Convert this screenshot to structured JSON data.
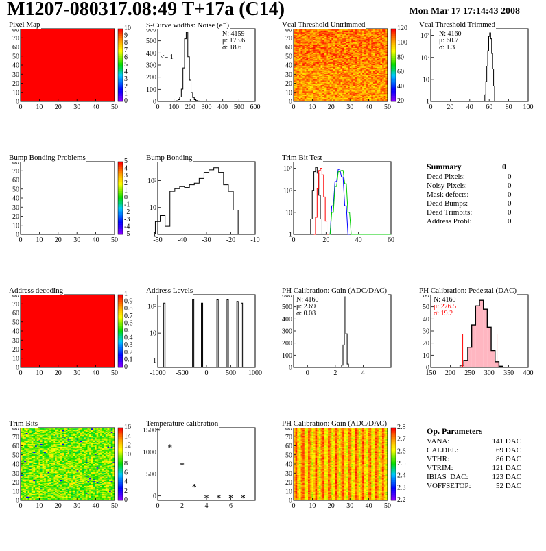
{
  "header": {
    "title": "M1207-080317.08:49 T+17a (C14)",
    "datestamp": "Mon Mar 17 17:14:43 2008"
  },
  "colors": {
    "red": "#ff0000",
    "black": "#000000",
    "blue": "#0000ff",
    "green": "#00cc00",
    "pink": "#ffb6c1"
  },
  "panels": [
    {
      "id": "pixel-map",
      "title": "Pixel Map",
      "type": "heatmap",
      "xticks": [
        "0",
        "10",
        "20",
        "30",
        "40",
        "50"
      ],
      "yticks": [
        "0",
        "10",
        "20",
        "30",
        "40",
        "50",
        "60",
        "70",
        "80"
      ],
      "zticks": [
        "0",
        "1",
        "2",
        "3",
        "4",
        "5",
        "6",
        "7",
        "8",
        "9",
        "10"
      ],
      "fill": "uniform-red"
    },
    {
      "id": "scurve-noise",
      "title": "S-Curve widths: Noise (e⁻)",
      "type": "histogram",
      "xticks": [
        "0",
        "100",
        "200",
        "300",
        "400",
        "500",
        "600"
      ],
      "yticks": [
        "0",
        "100",
        "200",
        "300",
        "400",
        "500",
        "600"
      ],
      "stats": [
        "N: 4159",
        "μ: 173.6",
        "σ: 18.6"
      ],
      "note": "<= 1"
    },
    {
      "id": "vcal-untrimmed",
      "title": "Vcal Threshold Untrimmed",
      "type": "heatmap",
      "xticks": [
        "0",
        "10",
        "20",
        "30",
        "40",
        "50"
      ],
      "yticks": [
        "0",
        "10",
        "20",
        "30",
        "40",
        "50",
        "60",
        "70",
        "80"
      ],
      "zticks": [
        "20",
        "40",
        "60",
        "80",
        "100",
        "120"
      ],
      "fill": "orange-noise"
    },
    {
      "id": "vcal-trimmed",
      "title": "Vcal Threshold Trimmed",
      "type": "histogram",
      "xticks": [
        "0",
        "20",
        "40",
        "60",
        "80",
        "100"
      ],
      "yticks": [
        "1",
        "10",
        "10²",
        "10³"
      ],
      "stats": [
        "N: 4160",
        "μ: 60.7",
        "σ:  1.3"
      ]
    },
    {
      "id": "bump-problems",
      "title": "Bump Bonding Problems",
      "type": "heatmap",
      "xticks": [
        "0",
        "10",
        "20",
        "30",
        "40",
        "50"
      ],
      "yticks": [
        "0",
        "10",
        "20",
        "30",
        "40",
        "50",
        "60",
        "70",
        "80"
      ],
      "zticks": [
        "-5",
        "-4",
        "-3",
        "-2",
        "-1",
        "0",
        "1",
        "2",
        "3",
        "4",
        "5"
      ],
      "fill": "empty"
    },
    {
      "id": "bump-bonding",
      "title": "Bump Bonding",
      "type": "histogram",
      "xticks": [
        "-50",
        "-40",
        "-30",
        "-20",
        "-10"
      ],
      "yticks": [
        "1",
        "10",
        "10²"
      ]
    },
    {
      "id": "trim-bit-test",
      "title": "Trim Bit Test",
      "type": "histogram",
      "xticks": [
        "0",
        "20",
        "40",
        "60"
      ],
      "yticks": [
        "1",
        "10",
        "10²",
        "10³"
      ]
    },
    {
      "id": "address-decoding",
      "title": "Address decoding",
      "type": "heatmap",
      "xticks": [
        "0",
        "10",
        "20",
        "30",
        "40",
        "50"
      ],
      "yticks": [
        "0",
        "10",
        "20",
        "30",
        "40",
        "50",
        "60",
        "70",
        "80"
      ],
      "zticks": [
        "0",
        "0.1",
        "0.2",
        "0.3",
        "0.4",
        "0.5",
        "0.6",
        "0.7",
        "0.8",
        "0.9",
        "1"
      ],
      "fill": "uniform-red"
    },
    {
      "id": "address-levels",
      "title": "Address Levels",
      "type": "histogram",
      "xticks": [
        "-1000",
        "-500",
        "0",
        "500",
        "1000"
      ],
      "yticks": [
        "1",
        "10",
        "10²"
      ]
    },
    {
      "id": "ph-gain",
      "title": "PH Calibration: Gain (ADC/DAC)",
      "type": "histogram",
      "xticks": [
        "0",
        "2",
        "4"
      ],
      "yticks": [
        "0",
        "100",
        "200",
        "300",
        "400",
        "500",
        "600"
      ],
      "stats": [
        "N: 4160",
        "μ: 2.69",
        "σ: 0.08"
      ]
    },
    {
      "id": "ph-pedestal",
      "title": "PH Calibration: Pedestal (DAC)",
      "type": "histogram",
      "xticks": [
        "150",
        "200",
        "250",
        "300",
        "350",
        "400"
      ],
      "yticks": [
        "0",
        "10",
        "20",
        "30",
        "40",
        "50",
        "60"
      ],
      "stats": [
        "N: 4160",
        "μ: 276.5",
        "σ: 19.2"
      ]
    },
    {
      "id": "trim-bits",
      "title": "Trim Bits",
      "type": "heatmap",
      "xticks": [
        "0",
        "10",
        "20",
        "30",
        "40",
        "50"
      ],
      "yticks": [
        "0",
        "10",
        "20",
        "30",
        "40",
        "50",
        "60",
        "70",
        "80"
      ],
      "zticks": [
        "0",
        "2",
        "4",
        "6",
        "8",
        "10",
        "12",
        "14",
        "16"
      ],
      "fill": "green-noise"
    },
    {
      "id": "temperature-calibration",
      "title": "Temperature calibration",
      "type": "scatter",
      "xticks": [
        "0",
        "2",
        "4",
        "6"
      ],
      "yticks": [
        "0",
        "500",
        "1000",
        "1500"
      ]
    },
    {
      "id": "ph-gain-map",
      "title": "PH Calibration: Gain (ADC/DAC)",
      "type": "heatmap",
      "xticks": [
        "0",
        "10",
        "20",
        "30",
        "40",
        "50"
      ],
      "yticks": [
        "0",
        "10",
        "20",
        "30",
        "40",
        "50",
        "60",
        "70",
        "80"
      ],
      "zticks": [
        "2.2",
        "2.3",
        "2.4",
        "2.5",
        "2.6",
        "2.7",
        "2.8"
      ],
      "fill": "gain-noise"
    }
  ],
  "summary": {
    "title": "Summary",
    "total": "0",
    "rows": [
      {
        "label": "Dead Pixels:",
        "value": "0"
      },
      {
        "label": "Noisy Pixels:",
        "value": "0"
      },
      {
        "label": "Mask defects:",
        "value": "0"
      },
      {
        "label": "Dead Bumps:",
        "value": "0"
      },
      {
        "label": "Dead Trimbits:",
        "value": "0"
      },
      {
        "label": "Address Probl:",
        "value": "0"
      }
    ]
  },
  "op_parameters": {
    "title": "Op. Parameters",
    "rows": [
      {
        "label": "VANA:",
        "value": "141 DAC"
      },
      {
        "label": "CALDEL:",
        "value": "69 DAC"
      },
      {
        "label": "VTHR:",
        "value": "86 DAC"
      },
      {
        "label": "VTRIM:",
        "value": "121 DAC"
      },
      {
        "label": "IBIAS_DAC:",
        "value": "123 DAC"
      },
      {
        "label": "VOFFSETOP:",
        "value": "52 DAC"
      }
    ]
  },
  "chart_data": [
    {
      "type": "heatmap",
      "title": "Pixel Map",
      "xlim": [
        0,
        52
      ],
      "ylim": [
        0,
        80
      ],
      "zlim": [
        0,
        10
      ],
      "values": "all pixels ≈ 10 (uniform)"
    },
    {
      "type": "bar",
      "title": "S-Curve widths: Noise (e⁻)",
      "xlim": [
        0,
        600
      ],
      "ylim": [
        0,
        650
      ],
      "x": [
        100,
        110,
        120,
        130,
        140,
        150,
        160,
        170,
        180,
        190,
        200,
        210,
        220,
        230,
        240,
        250,
        260,
        270,
        280,
        290,
        300
      ],
      "values": [
        0,
        2,
        5,
        15,
        40,
        110,
        300,
        560,
        620,
        400,
        190,
        80,
        35,
        15,
        8,
        4,
        2,
        1,
        0,
        0,
        0
      ]
    },
    {
      "type": "heatmap",
      "title": "Vcal Threshold Untrimmed",
      "xlim": [
        0,
        52
      ],
      "ylim": [
        0,
        80
      ],
      "zlim": [
        0,
        130
      ]
    },
    {
      "type": "bar",
      "title": "Vcal Threshold Trimmed",
      "xlim": [
        0,
        100
      ],
      "log_y": true,
      "x": [
        55,
        56,
        57,
        58,
        59,
        60,
        61,
        62,
        63,
        64,
        65,
        66,
        67
      ],
      "values": [
        1,
        2,
        8,
        40,
        200,
        900,
        1300,
        700,
        150,
        30,
        5,
        1,
        1
      ]
    },
    {
      "type": "heatmap",
      "title": "Bump Bonding Problems",
      "xlim": [
        0,
        52
      ],
      "ylim": [
        0,
        80
      ],
      "zlim": [
        -5,
        5
      ]
    },
    {
      "type": "bar",
      "title": "Bump Bonding",
      "xlim": [
        -50,
        -10
      ],
      "log_y": true,
      "x": [
        -50,
        -48,
        -46,
        -44,
        -42,
        -40,
        -38,
        -36,
        -34,
        -32,
        -30,
        -28,
        -26,
        -24,
        -22,
        -20,
        -18,
        -16
      ],
      "values": [
        3,
        5,
        2,
        40,
        50,
        60,
        55,
        70,
        80,
        120,
        200,
        250,
        300,
        200,
        70,
        40,
        8,
        1
      ]
    },
    {
      "type": "line",
      "title": "Trim Bit Test",
      "xlim": [
        0,
        60
      ],
      "log_y": true,
      "series": [
        {
          "color": "black",
          "x": [
            10,
            11,
            12,
            13,
            14,
            15,
            16,
            17,
            18
          ],
          "values": [
            1,
            5,
            100,
            700,
            1100,
            600,
            60,
            5,
            1
          ]
        },
        {
          "color": "red",
          "x": [
            13,
            14,
            15,
            16,
            17,
            18,
            19,
            20,
            21
          ],
          "values": [
            1,
            6,
            120,
            800,
            1000,
            500,
            50,
            4,
            1
          ]
        },
        {
          "color": "blue",
          "x": [
            22,
            24,
            26,
            28,
            30,
            32,
            34
          ],
          "values": [
            1,
            20,
            250,
            900,
            400,
            20,
            1
          ]
        },
        {
          "color": "green",
          "x": [
            22,
            24,
            26,
            28,
            30,
            32,
            34,
            36
          ],
          "values": [
            1,
            10,
            150,
            700,
            800,
            200,
            10,
            1
          ]
        }
      ]
    },
    {
      "type": "heatmap",
      "title": "Address decoding",
      "xlim": [
        0,
        52
      ],
      "ylim": [
        0,
        80
      ],
      "zlim": [
        0,
        1
      ]
    },
    {
      "type": "bar",
      "title": "Address Levels",
      "xlim": [
        -1000,
        1000
      ],
      "log_y": true,
      "peaks_x": [
        -950,
        -300,
        -100,
        250,
        480,
        700,
        800
      ],
      "peaks_value": [
        300,
        400,
        300,
        400,
        400,
        350,
        300
      ]
    },
    {
      "type": "bar",
      "title": "PH Calibration: Gain (ADC/DAC)",
      "xlim": [
        -1,
        6
      ],
      "ylim": [
        0,
        650
      ],
      "x": [
        2.4,
        2.5,
        2.6,
        2.7,
        2.8,
        2.9,
        3.0
      ],
      "values": [
        2,
        20,
        200,
        630,
        300,
        30,
        2
      ]
    },
    {
      "type": "bar",
      "title": "PH Calibration: Pedestal (DAC)",
      "xlim": [
        150,
        400
      ],
      "ylim": [
        0,
        65
      ],
      "x": [
        230,
        240,
        250,
        260,
        270,
        280,
        290,
        300,
        310,
        320,
        330
      ],
      "values": [
        2,
        6,
        18,
        38,
        55,
        60,
        52,
        36,
        15,
        5,
        1
      ],
      "fit_range": [
        232,
        320
      ]
    },
    {
      "type": "heatmap",
      "title": "Trim Bits",
      "xlim": [
        0,
        52
      ],
      "ylim": [
        0,
        80
      ],
      "zlim": [
        0,
        16
      ]
    },
    {
      "type": "scatter",
      "title": "Temperature calibration",
      "xlim": [
        0,
        8
      ],
      "ylim": [
        -100,
        1550
      ],
      "x": [
        0,
        1,
        2,
        3,
        4,
        5,
        6,
        7
      ],
      "values": [
        1480,
        1110,
        700,
        210,
        -40,
        -40,
        -40,
        -40
      ]
    },
    {
      "type": "heatmap",
      "title": "PH Calibration: Gain (ADC/DAC)",
      "xlim": [
        0,
        52
      ],
      "ylim": [
        0,
        80
      ],
      "zlim": [
        2.2,
        2.85
      ]
    }
  ]
}
